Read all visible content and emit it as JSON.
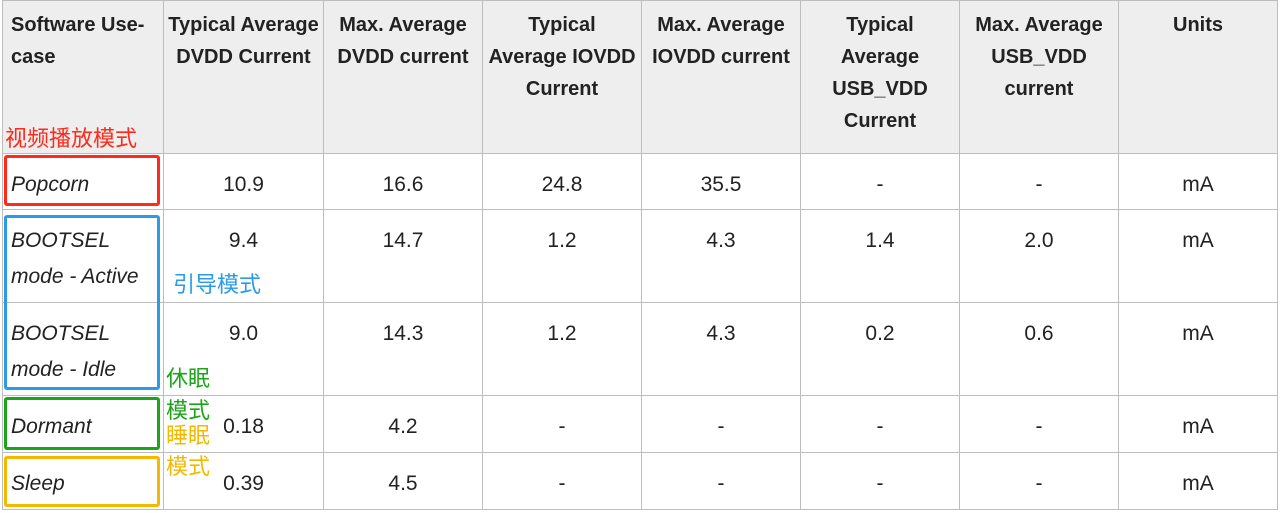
{
  "table": {
    "headers": [
      "Software Use-case",
      "Typical Average DVDD Current",
      "Max. Average DVDD current",
      "Typical Average IOVDD Current",
      "Max. Average IOVDD current",
      "Typical Average USB_VDD Current",
      "Max. Average USB_VDD current",
      "Units"
    ],
    "rows": [
      {
        "use_case": "Popcorn",
        "values": [
          "10.9",
          "16.6",
          "24.8",
          "35.5",
          "-",
          "-",
          "mA"
        ]
      },
      {
        "use_case": "BOOTSEL mode - Active",
        "values": [
          "9.4",
          "14.7",
          "1.2",
          "4.3",
          "1.4",
          "2.0",
          "mA"
        ]
      },
      {
        "use_case": "BOOTSEL mode - Idle",
        "values": [
          "9.0",
          "14.3",
          "1.2",
          "4.3",
          "0.2",
          "0.6",
          "mA"
        ]
      },
      {
        "use_case": "Dormant",
        "values": [
          "0.18",
          "4.2",
          "-",
          "-",
          "-",
          "-",
          "mA"
        ]
      },
      {
        "use_case": "Sleep",
        "values": [
          "0.39",
          "4.5",
          "-",
          "-",
          "-",
          "-",
          "mA"
        ]
      }
    ]
  },
  "annotations": {
    "video_playback": {
      "text": "视频播放模式",
      "color": "#ff2a1a"
    },
    "boot_mode": {
      "text": "引导模式",
      "color": "#2b9be8"
    },
    "dormant_1": {
      "text": "休眠",
      "color": "#1aa51a"
    },
    "dormant_2": {
      "text": "模式",
      "color": "#1aa51a"
    },
    "sleep_1": {
      "text": "睡眠",
      "color": "#f5b800"
    },
    "sleep_2": {
      "text": "模式",
      "color": "#f5b800"
    }
  }
}
